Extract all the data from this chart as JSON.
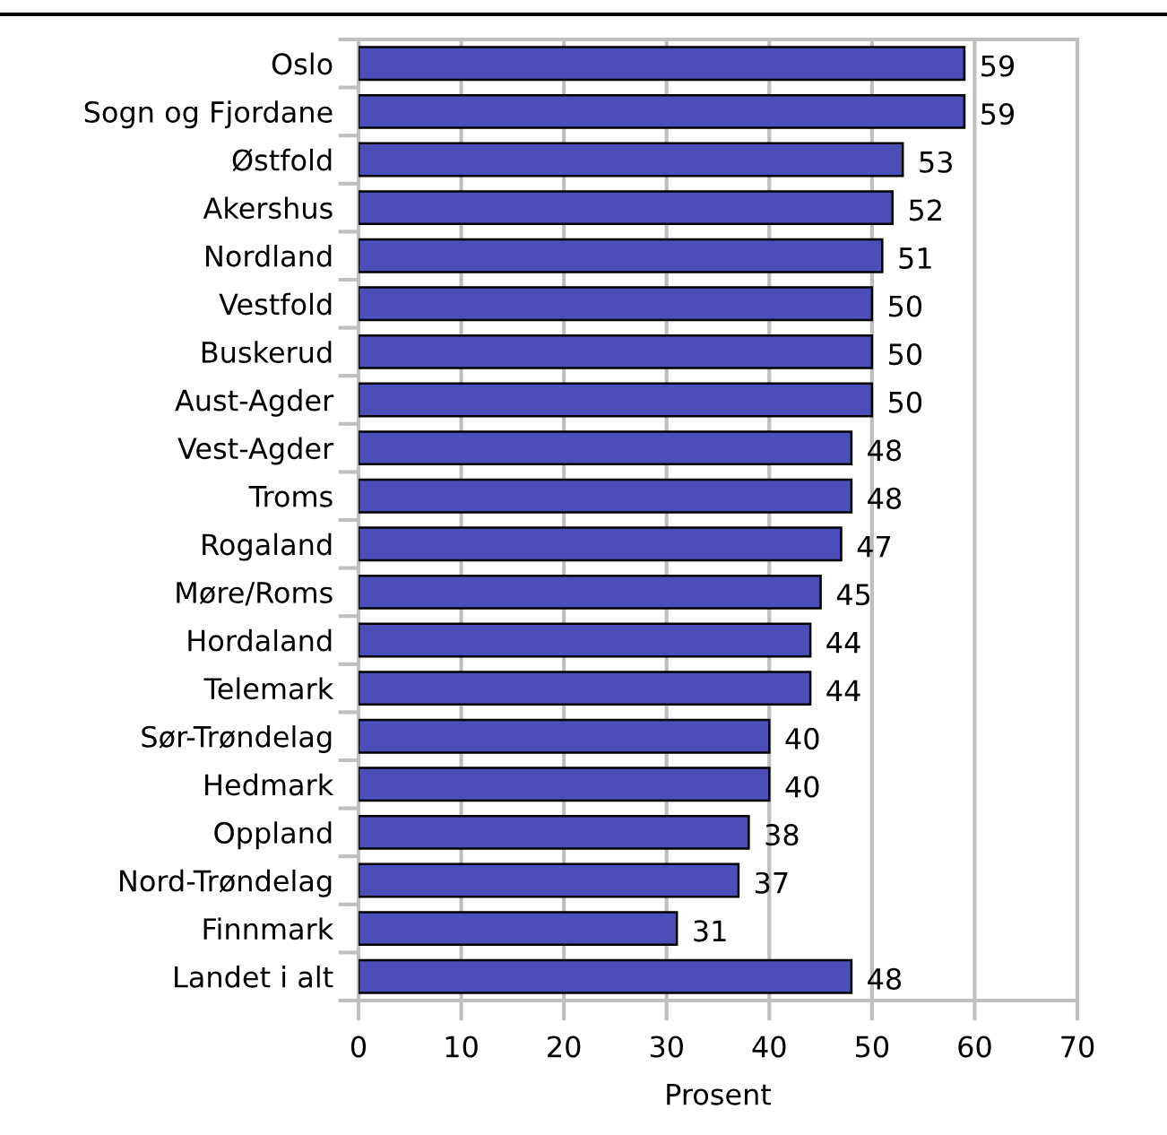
{
  "chart_data": {
    "type": "bar",
    "orientation": "horizontal",
    "xlabel": "Prosent",
    "categories": [
      "Oslo",
      "Sogn og Fjordane",
      "Østfold",
      "Akershus",
      "Nordland",
      "Vestfold",
      "Buskerud",
      "Aust-Agder",
      "Vest-Agder",
      "Troms",
      "Rogaland",
      "Møre/Roms",
      "Hordaland",
      "Telemark",
      "Sør-Trøndelag",
      "Hedmark",
      "Oppland",
      "Nord-Trøndelag",
      "Finnmark",
      "Landet i alt"
    ],
    "values": [
      59,
      59,
      53,
      52,
      51,
      50,
      50,
      50,
      48,
      48,
      47,
      45,
      44,
      44,
      40,
      40,
      38,
      37,
      31,
      48
    ],
    "color": "#4b4eb7",
    "xlim": [
      0,
      70
    ],
    "xticks": [
      0,
      10,
      20,
      30,
      40,
      50,
      60,
      70
    ],
    "grid": "x",
    "data_labels": true
  }
}
